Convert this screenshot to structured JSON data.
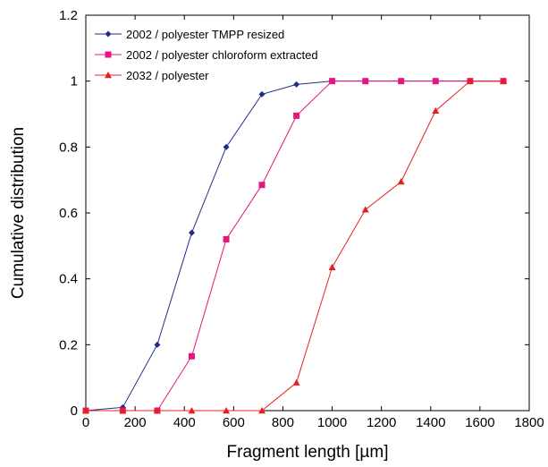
{
  "chart_data": {
    "type": "line",
    "xlabel": "Fragment length [µm]",
    "ylabel": "Cumulative distribution",
    "xlim": [
      0,
      1800
    ],
    "ylim": [
      0,
      1.2
    ],
    "xticks": [
      "0",
      "200",
      "400",
      "600",
      "800",
      "1000",
      "1200",
      "1400",
      "1600",
      "1800"
    ],
    "yticks": [
      "0",
      "0.2",
      "0.4",
      "0.6",
      "0.8",
      "1",
      "1.2"
    ],
    "grid": false,
    "legend_position": "top-left",
    "series": [
      {
        "name": "2002 / polyester TMPP resized",
        "color": "#1f2d8a",
        "marker": "diamond",
        "x": [
          0,
          150,
          290,
          430,
          570,
          715,
          855,
          1000,
          1135,
          1280,
          1420,
          1560,
          1695
        ],
        "y": [
          0,
          0.01,
          0.2,
          0.54,
          0.8,
          0.96,
          0.99,
          1,
          1,
          1,
          1,
          1,
          1
        ]
      },
      {
        "name": "2002 / polyester chloroform extracted",
        "color": "#e6157f",
        "marker": "square",
        "x": [
          0,
          150,
          290,
          430,
          570,
          715,
          855,
          1000,
          1135,
          1280,
          1420,
          1560,
          1695
        ],
        "y": [
          0,
          0,
          0,
          0.165,
          0.52,
          0.685,
          0.895,
          1,
          1,
          1,
          1,
          1,
          1
        ]
      },
      {
        "name": "2032 /  polyester",
        "color": "#e8201c",
        "marker": "triangle",
        "x": [
          0,
          150,
          290,
          430,
          570,
          715,
          855,
          1000,
          1135,
          1280,
          1420,
          1560,
          1695
        ],
        "y": [
          0,
          0,
          0,
          0,
          0,
          0,
          0.085,
          0.435,
          0.61,
          0.695,
          0.91,
          1,
          1
        ]
      }
    ]
  }
}
